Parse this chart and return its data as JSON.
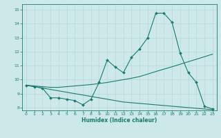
{
  "title": "",
  "xlabel": "Humidex (Indice chaleur)",
  "background_color": "#cce8e8",
  "line_color": "#1a7a6e",
  "grid_color": "#b8d8d8",
  "xlim": [
    -0.5,
    23.5
  ],
  "ylim": [
    7.8,
    15.4
  ],
  "xticks": [
    0,
    1,
    2,
    3,
    4,
    5,
    6,
    7,
    8,
    9,
    10,
    11,
    12,
    13,
    14,
    15,
    16,
    17,
    18,
    19,
    20,
    21,
    22,
    23
  ],
  "yticks": [
    8,
    9,
    10,
    11,
    12,
    13,
    14,
    15
  ],
  "line1_x": [
    0,
    1,
    2,
    3,
    4,
    5,
    6,
    7,
    8,
    9,
    10,
    11,
    12,
    13,
    14,
    15,
    16,
    17,
    18,
    19,
    20,
    21,
    22,
    23
  ],
  "line1_y": [
    9.6,
    9.5,
    9.4,
    8.7,
    8.7,
    8.6,
    8.5,
    8.2,
    8.6,
    9.8,
    11.4,
    10.9,
    10.5,
    11.6,
    12.2,
    13.0,
    14.75,
    14.75,
    14.1,
    11.9,
    10.5,
    9.8,
    8.1,
    7.9
  ],
  "line2_x": [
    0,
    1,
    2,
    3,
    4,
    5,
    6,
    7,
    8,
    9,
    10,
    11,
    12,
    13,
    14,
    15,
    16,
    17,
    18,
    19,
    20,
    21,
    22,
    23
  ],
  "line2_y": [
    9.6,
    9.55,
    9.5,
    9.45,
    9.45,
    9.5,
    9.55,
    9.6,
    9.65,
    9.72,
    9.8,
    9.9,
    10.0,
    10.1,
    10.22,
    10.4,
    10.58,
    10.75,
    10.92,
    11.1,
    11.28,
    11.46,
    11.64,
    11.82
  ],
  "line3_x": [
    0,
    1,
    2,
    3,
    4,
    5,
    6,
    7,
    8,
    9,
    10,
    11,
    12,
    13,
    14,
    15,
    16,
    17,
    18,
    19,
    20,
    21,
    22,
    23
  ],
  "line3_y": [
    9.6,
    9.5,
    9.4,
    9.3,
    9.2,
    9.1,
    9.0,
    8.9,
    8.8,
    8.7,
    8.6,
    8.5,
    8.4,
    8.35,
    8.3,
    8.25,
    8.2,
    8.15,
    8.1,
    8.05,
    8.0,
    7.95,
    7.9,
    7.85
  ]
}
